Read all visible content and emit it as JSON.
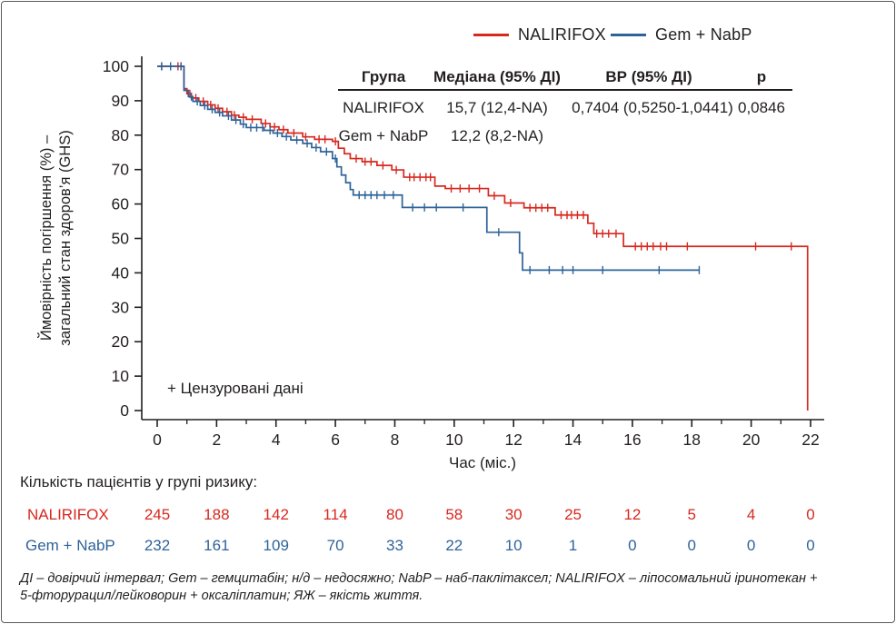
{
  "legend": {
    "items": [
      {
        "label": "NALIRIFOX",
        "color": "#d7281e"
      },
      {
        "label": "Gem + NabP",
        "color": "#2e6399"
      }
    ]
  },
  "stats_table": {
    "headers": [
      "Група",
      "Медіана (95% ДІ)",
      "ВР (95% ДІ)",
      "p"
    ],
    "rows": [
      {
        "group": "NALIRIFOX",
        "median": "15,7 (12,4-NA)",
        "hr": "0,7404 (0,5250-1,0441)",
        "p": "0,0846"
      },
      {
        "group": "Gem + NabP",
        "median": "12,2 (8,2-NA)",
        "hr": "",
        "p": ""
      }
    ]
  },
  "chart_data": {
    "type": "line",
    "subtype": "kaplan-meier-step",
    "xlabel": "Час (міс.)",
    "ylabel_line1": "Ймовірність погіршення (%) –",
    "ylabel_line2": "загальний стан здоров’я (GHS)",
    "annotation": "+ Цензуровані дані",
    "xlim": [
      0,
      22
    ],
    "ylim": [
      0,
      100
    ],
    "xticks": [
      0,
      2,
      4,
      6,
      8,
      10,
      12,
      14,
      16,
      18,
      20,
      22
    ],
    "xminorticks": [
      1,
      3,
      5,
      7,
      9,
      11,
      13,
      15,
      17,
      19,
      21
    ],
    "yticks": [
      0,
      10,
      20,
      30,
      40,
      50,
      60,
      70,
      80,
      90,
      100
    ],
    "grid": false,
    "legend_position": "top-center",
    "axis_color": "#231f20",
    "series": [
      {
        "name": "NALIRIFOX",
        "color": "#d7281e",
        "steps": [
          [
            0,
            100
          ],
          [
            0.9,
            93.5
          ],
          [
            1.0,
            92
          ],
          [
            1.15,
            90.8
          ],
          [
            1.4,
            89.8
          ],
          [
            1.7,
            88.8
          ],
          [
            1.95,
            87.8
          ],
          [
            2.2,
            86.8
          ],
          [
            2.5,
            85.8
          ],
          [
            2.75,
            85.2
          ],
          [
            3.0,
            84.6
          ],
          [
            3.5,
            83.4
          ],
          [
            3.8,
            82.4
          ],
          [
            4.1,
            81.6
          ],
          [
            4.4,
            80.6
          ],
          [
            4.9,
            79.5
          ],
          [
            5.3,
            78.8
          ],
          [
            5.9,
            78.2
          ],
          [
            6.1,
            76.2
          ],
          [
            6.3,
            74.6
          ],
          [
            6.5,
            73.2
          ],
          [
            6.9,
            72.3
          ],
          [
            7.4,
            71.2
          ],
          [
            7.9,
            69.9
          ],
          [
            8.3,
            67.8
          ],
          [
            9.35,
            65.2
          ],
          [
            9.7,
            64.5
          ],
          [
            11.15,
            62.4
          ],
          [
            11.7,
            60.3
          ],
          [
            12.35,
            58.9
          ],
          [
            13.4,
            56.8
          ],
          [
            14.5,
            54.4
          ],
          [
            14.7,
            51.4
          ],
          [
            15.7,
            47.7
          ],
          [
            21.9,
            0
          ]
        ],
        "censors": [
          [
            0.15,
            100
          ],
          [
            0.7,
            100
          ],
          [
            0.8,
            100
          ],
          [
            1.1,
            92
          ],
          [
            1.3,
            90.8
          ],
          [
            1.55,
            89.8
          ],
          [
            1.8,
            88.8
          ],
          [
            2.05,
            87.8
          ],
          [
            2.35,
            86.8
          ],
          [
            2.6,
            85.8
          ],
          [
            2.9,
            85.2
          ],
          [
            3.2,
            84.6
          ],
          [
            3.65,
            83.4
          ],
          [
            3.95,
            82.4
          ],
          [
            4.25,
            81.6
          ],
          [
            4.6,
            80.6
          ],
          [
            5.0,
            79.5
          ],
          [
            5.45,
            78.8
          ],
          [
            5.65,
            78.8
          ],
          [
            6.0,
            78.2
          ],
          [
            6.7,
            73.2
          ],
          [
            7.0,
            72.3
          ],
          [
            7.2,
            72.3
          ],
          [
            7.6,
            71.2
          ],
          [
            8.05,
            69.9
          ],
          [
            8.5,
            67.8
          ],
          [
            8.65,
            67.8
          ],
          [
            8.85,
            67.8
          ],
          [
            9.05,
            67.8
          ],
          [
            9.2,
            67.8
          ],
          [
            9.9,
            64.5
          ],
          [
            10.2,
            64.5
          ],
          [
            10.5,
            64.5
          ],
          [
            10.85,
            64.5
          ],
          [
            11.35,
            62.4
          ],
          [
            11.9,
            60.3
          ],
          [
            12.55,
            58.9
          ],
          [
            12.75,
            58.9
          ],
          [
            12.95,
            58.9
          ],
          [
            13.15,
            58.9
          ],
          [
            13.6,
            56.8
          ],
          [
            13.8,
            56.8
          ],
          [
            13.95,
            56.8
          ],
          [
            14.15,
            56.8
          ],
          [
            14.35,
            56.8
          ],
          [
            14.8,
            51.4
          ],
          [
            15.0,
            51.4
          ],
          [
            15.2,
            51.4
          ],
          [
            15.45,
            51.4
          ],
          [
            16.1,
            47.7
          ],
          [
            16.3,
            47.7
          ],
          [
            16.5,
            47.7
          ],
          [
            16.7,
            47.7
          ],
          [
            16.95,
            47.7
          ],
          [
            17.15,
            47.7
          ],
          [
            17.85,
            47.7
          ],
          [
            20.15,
            47.7
          ],
          [
            21.35,
            47.7
          ]
        ]
      },
      {
        "name": "Gem + NabP",
        "color": "#2e6399",
        "steps": [
          [
            0,
            100
          ],
          [
            0.9,
            93
          ],
          [
            1.05,
            91.2
          ],
          [
            1.2,
            89.8
          ],
          [
            1.45,
            88.6
          ],
          [
            1.7,
            87.5
          ],
          [
            1.95,
            86.6
          ],
          [
            2.2,
            85.6
          ],
          [
            2.5,
            84.4
          ],
          [
            2.8,
            83.2
          ],
          [
            3.0,
            82.2
          ],
          [
            3.6,
            81.4
          ],
          [
            3.9,
            80.6
          ],
          [
            4.2,
            79.6
          ],
          [
            4.5,
            78.6
          ],
          [
            4.9,
            77.6
          ],
          [
            5.2,
            76.4
          ],
          [
            5.5,
            75.2
          ],
          [
            5.9,
            73.2
          ],
          [
            6.05,
            70.8
          ],
          [
            6.2,
            68.4
          ],
          [
            6.35,
            66.2
          ],
          [
            6.5,
            64.2
          ],
          [
            6.6,
            62.6
          ],
          [
            8.25,
            59
          ],
          [
            11.1,
            51.8
          ],
          [
            12.2,
            45.8
          ],
          [
            12.3,
            40.8
          ],
          [
            18.25,
            40.8
          ]
        ],
        "censors": [
          [
            0.15,
            100
          ],
          [
            0.45,
            100
          ],
          [
            0.8,
            100
          ],
          [
            1.15,
            91.2
          ],
          [
            1.35,
            89.8
          ],
          [
            1.6,
            88.6
          ],
          [
            1.85,
            87.5
          ],
          [
            2.1,
            86.6
          ],
          [
            2.4,
            85.6
          ],
          [
            2.65,
            84.4
          ],
          [
            2.9,
            83.2
          ],
          [
            3.15,
            82.2
          ],
          [
            3.35,
            82.2
          ],
          [
            3.55,
            82.2
          ],
          [
            3.8,
            81.4
          ],
          [
            4.05,
            80.6
          ],
          [
            4.35,
            79.6
          ],
          [
            4.7,
            78.6
          ],
          [
            5.05,
            77.6
          ],
          [
            5.35,
            76.4
          ],
          [
            5.7,
            75.2
          ],
          [
            6.0,
            73.2
          ],
          [
            6.8,
            62.6
          ],
          [
            7.0,
            62.6
          ],
          [
            7.2,
            62.6
          ],
          [
            7.4,
            62.6
          ],
          [
            7.65,
            62.6
          ],
          [
            7.95,
            62.6
          ],
          [
            8.6,
            59
          ],
          [
            9.0,
            59
          ],
          [
            9.4,
            59
          ],
          [
            10.3,
            59
          ],
          [
            11.5,
            51.8
          ],
          [
            12.55,
            40.8
          ],
          [
            13.2,
            40.8
          ],
          [
            13.65,
            40.8
          ],
          [
            14.0,
            40.8
          ],
          [
            15.0,
            40.8
          ],
          [
            16.9,
            40.8
          ],
          [
            18.25,
            40.8
          ]
        ]
      }
    ]
  },
  "risk_table": {
    "title": "Кількість пацієнтів у групі ризику:",
    "months": [
      0,
      2,
      4,
      6,
      8,
      10,
      12,
      14,
      16,
      18,
      20,
      22
    ],
    "rows": [
      {
        "name": "NALIRIFOX",
        "color": "#d7281e",
        "counts": [
          "245",
          "188",
          "142",
          "114",
          "80",
          "58",
          "30",
          "25",
          "12",
          "5",
          "4",
          "0"
        ]
      },
      {
        "name": "Gem + NabP",
        "color": "#2e6399",
        "counts": [
          "232",
          "161",
          "109",
          "70",
          "33",
          "22",
          "10",
          "1",
          "0",
          "0",
          "0",
          "0"
        ]
      }
    ]
  },
  "footnote": {
    "line1": "ДІ – довірчий інтервал; Gem – гемцитабін; н/д – недосяжно; NabP – наб-паклітаксел; NALIRIFOX – ліпосомальний іринотекан +",
    "line2": "5-фторурацил/лейковорин + оксаліплатин; ЯЖ – якість життя."
  }
}
